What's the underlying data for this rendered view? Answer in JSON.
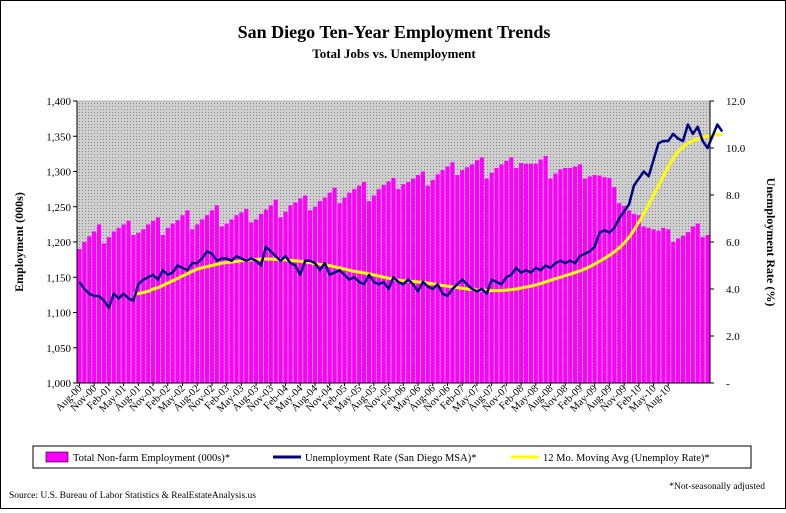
{
  "chart_data": {
    "type": "bar",
    "title": "San Diego Ten-Year Employment Trends",
    "subtitle": "Total Jobs vs. Unemployment",
    "ylabel": "Employment (000s)",
    "y2label": "Unemployment Rate (%)",
    "ylim": [
      1000,
      1400
    ],
    "y2lim": [
      0,
      12
    ],
    "yticks": [
      "1,000",
      "1,050",
      "1,100",
      "1,150",
      "1,200",
      "1,250",
      "1,300",
      "1,350",
      "1,400"
    ],
    "y2ticks": [
      "-",
      "2.0",
      "4.0",
      "6.0",
      "8.0",
      "10.0",
      "12.0"
    ],
    "x_tick_labels": [
      "Aug-00",
      "Nov-00",
      "Feb-01",
      "May-01",
      "Aug-01",
      "Nov-01",
      "Feb-02",
      "May-02",
      "Aug-02",
      "Nov-02",
      "Feb-03",
      "May-03",
      "Aug-03",
      "Nov-03",
      "Feb-04",
      "May-04",
      "Aug-04",
      "Nov-04",
      "Feb-05",
      "May-05",
      "Aug-05",
      "Nov-05",
      "Feb-06",
      "May-06",
      "Aug-06",
      "Nov-06",
      "Feb-07",
      "May-07",
      "Aug-07",
      "Nov-07",
      "Feb-08",
      "May-08",
      "Aug-08",
      "Nov-08",
      "Feb-09",
      "May-09",
      "Aug-09",
      "Nov-09",
      "Feb-10",
      "May-10",
      "Aug-10"
    ],
    "grid": false,
    "legend_position": "bottom",
    "colors": {
      "bars": "#ff00ff",
      "unemployment": "#000080",
      "moving_avg": "#ffff00",
      "plot_bg": "#c8c8c8"
    },
    "series": [
      {
        "name": "Total Non-farm Employment (000s)*",
        "type": "bar",
        "axis": "left",
        "values": [
          1190,
          1200,
          1208,
          1215,
          1225,
          1198,
          1207,
          1215,
          1220,
          1225,
          1230,
          1210,
          1213,
          1218,
          1225,
          1230,
          1235,
          1210,
          1220,
          1226,
          1231,
          1238,
          1245,
          1218,
          1225,
          1232,
          1238,
          1245,
          1252,
          1222,
          1226,
          1232,
          1238,
          1242,
          1247,
          1228,
          1232,
          1240,
          1246,
          1252,
          1260,
          1235,
          1243,
          1252,
          1256,
          1262,
          1266,
          1245,
          1250,
          1258,
          1263,
          1270,
          1277,
          1255,
          1263,
          1270,
          1275,
          1280,
          1285,
          1258,
          1266,
          1275,
          1281,
          1286,
          1291,
          1275,
          1282,
          1285,
          1290,
          1295,
          1300,
          1280,
          1288,
          1296,
          1302,
          1307,
          1313,
          1295,
          1302,
          1306,
          1310,
          1316,
          1320,
          1290,
          1298,
          1305,
          1310,
          1315,
          1320,
          1305,
          1312,
          1311,
          1311,
          1311,
          1317,
          1322,
          1290,
          1297,
          1303,
          1305,
          1305,
          1307,
          1310,
          1290,
          1293,
          1295,
          1294,
          1292,
          1291,
          1278,
          1255,
          1251,
          1245,
          1240,
          1238,
          1222,
          1220,
          1218,
          1216,
          1220,
          1218,
          1200,
          1205,
          1209,
          1214,
          1222,
          1226,
          1207,
          1210
        ]
      },
      {
        "name": "Unemployment Rate (San Diego MSA)*",
        "type": "line",
        "axis": "right",
        "values": [
          4.3,
          4.0,
          3.8,
          3.7,
          3.7,
          3.5,
          3.2,
          3.8,
          3.6,
          3.8,
          3.6,
          3.5,
          4.2,
          4.4,
          4.5,
          4.6,
          4.4,
          4.8,
          4.6,
          4.7,
          5.0,
          4.9,
          4.8,
          5.1,
          5.1,
          5.3,
          5.6,
          5.5,
          5.2,
          5.3,
          5.3,
          5.2,
          5.4,
          5.3,
          5.2,
          5.3,
          5.2,
          5.0,
          5.8,
          5.6,
          5.4,
          5.2,
          5.4,
          5.1,
          5.0,
          4.6,
          5.2,
          5.2,
          5.1,
          4.8,
          5.1,
          4.6,
          4.7,
          4.8,
          4.6,
          4.4,
          4.5,
          4.3,
          4.2,
          4.6,
          4.3,
          4.2,
          4.3,
          4.0,
          4.5,
          4.3,
          4.2,
          4.4,
          4.2,
          3.9,
          4.3,
          4.1,
          4.0,
          4.2,
          3.8,
          3.7,
          4.0,
          4.2,
          4.4,
          4.2,
          4.0,
          3.9,
          4.0,
          3.8,
          4.4,
          4.3,
          4.2,
          4.5,
          4.6,
          4.9,
          4.7,
          4.8,
          4.7,
          4.9,
          4.8,
          5.0,
          4.9,
          5.1,
          5.2,
          5.1,
          5.2,
          5.1,
          5.4,
          5.5,
          5.6,
          5.8,
          6.4,
          6.5,
          6.4,
          6.6,
          7.0,
          7.3,
          7.6,
          8.4,
          8.7,
          9.0,
          8.8,
          9.5,
          10.2,
          10.3,
          10.3,
          10.6,
          10.4,
          10.3,
          11.0,
          10.6,
          10.9,
          10.3,
          10.0,
          10.5,
          11.0,
          10.7
        ]
      },
      {
        "name": "12 Mo. Moving Avg (Unemploy Rate)*",
        "type": "line",
        "axis": "right",
        "offset": 11,
        "values": [
          3.8,
          3.8,
          3.85,
          3.9,
          4.0,
          4.05,
          4.15,
          4.25,
          4.35,
          4.45,
          4.55,
          4.65,
          4.75,
          4.85,
          4.9,
          4.95,
          5.0,
          5.05,
          5.1,
          5.12,
          5.15,
          5.17,
          5.2,
          5.22,
          5.24,
          5.26,
          5.27,
          5.28,
          5.27,
          5.26,
          5.25,
          5.24,
          5.22,
          5.2,
          5.18,
          5.15,
          5.12,
          5.08,
          5.05,
          5.02,
          4.99,
          4.95,
          4.9,
          4.85,
          4.8,
          4.75,
          4.72,
          4.68,
          4.64,
          4.6,
          4.55,
          4.5,
          4.46,
          4.42,
          4.38,
          4.35,
          4.33,
          4.32,
          4.3,
          4.28,
          4.25,
          4.22,
          4.18,
          4.15,
          4.12,
          4.09,
          4.06,
          4.03,
          4.0,
          3.98,
          3.96,
          3.95,
          3.94,
          3.93,
          3.93,
          3.93,
          3.95,
          3.97,
          4.0,
          4.04,
          4.08,
          4.12,
          4.17,
          4.23,
          4.3,
          4.37,
          4.44,
          4.5,
          4.57,
          4.63,
          4.7,
          4.77,
          4.85,
          4.95,
          5.06,
          5.18,
          5.3,
          5.43,
          5.58,
          5.75,
          5.95,
          6.2,
          6.5,
          6.85,
          7.2,
          7.6,
          8.0,
          8.4,
          8.8,
          9.2,
          9.55,
          9.85,
          10.05,
          10.2,
          10.3,
          10.38,
          10.45,
          10.5,
          10.55,
          10.57,
          10.57
        ]
      }
    ],
    "footnote": "*Not-seasonally adjusted",
    "source": "Source: U.S. Bureau of Labor Statistics & RealEstateAnalysis.us"
  }
}
